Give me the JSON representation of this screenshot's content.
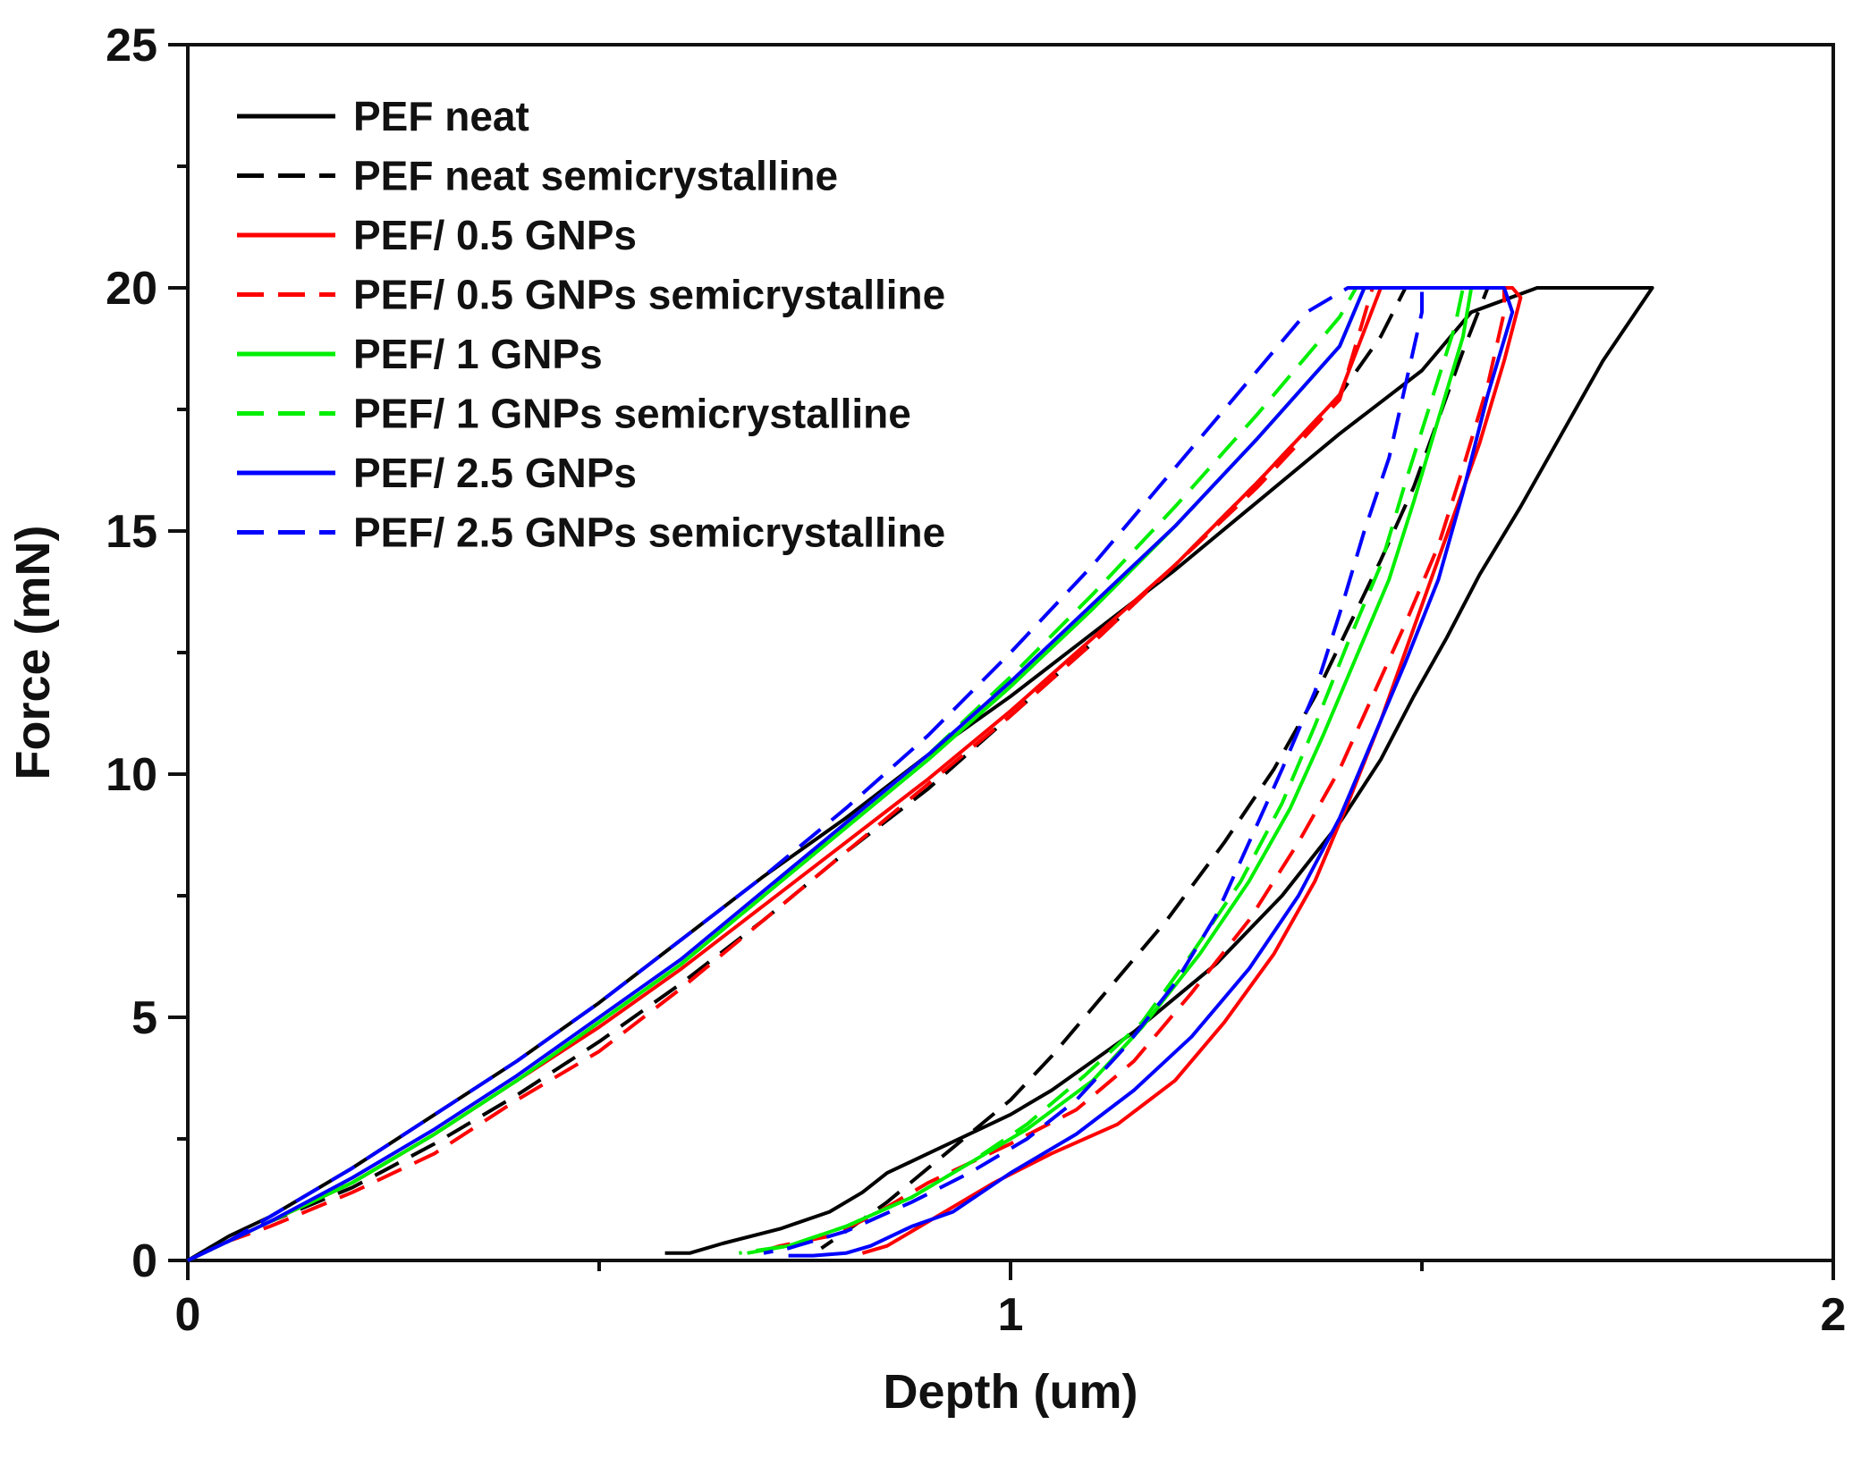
{
  "chart_data": {
    "type": "line",
    "title": "",
    "xlabel": "Depth (um)",
    "ylabel": "Force (mN)",
    "xlim": [
      0,
      2
    ],
    "ylim": [
      0,
      25
    ],
    "x_ticks": [
      0,
      1,
      2
    ],
    "x_minor_ticks": [
      0.5,
      1.5
    ],
    "y_ticks": [
      0,
      5,
      10,
      15,
      20,
      25
    ],
    "y_minor_ticks": [
      2.5,
      7.5,
      12.5,
      17.5,
      22.5
    ],
    "grid": false,
    "legend_position": "top-left",
    "series": [
      {
        "name": "PEF neat",
        "color": "#000000",
        "dash": false,
        "x": [
          0,
          0.05,
          0.1,
          0.2,
          0.3,
          0.4,
          0.5,
          0.6,
          0.7,
          0.8,
          0.9,
          1.0,
          1.1,
          1.2,
          1.3,
          1.4,
          1.5,
          1.56,
          1.64,
          1.78,
          1.72,
          1.67,
          1.62,
          1.57,
          1.53,
          1.49,
          1.45,
          1.4,
          1.33,
          1.25,
          1.15,
          1.1,
          1.05,
          1.0,
          0.95,
          0.9,
          0.85,
          0.82,
          0.78,
          0.72,
          0.65,
          0.61,
          0.58
        ],
        "y": [
          0,
          0.5,
          0.9,
          1.9,
          3.0,
          4.1,
          5.3,
          6.6,
          7.9,
          9.1,
          10.4,
          11.6,
          12.9,
          14.2,
          15.6,
          17.0,
          18.3,
          19.5,
          20.0,
          20.0,
          18.5,
          17.0,
          15.5,
          14.1,
          12.8,
          11.6,
          10.3,
          9.0,
          7.5,
          6.1,
          4.7,
          4.1,
          3.5,
          3.0,
          2.6,
          2.2,
          1.8,
          1.4,
          1.0,
          0.65,
          0.35,
          0.15,
          0.15
        ]
      },
      {
        "name": "PEF neat semicrystalline",
        "color": "#000000",
        "dash": true,
        "x": [
          0,
          0.05,
          0.1,
          0.2,
          0.3,
          0.4,
          0.5,
          0.6,
          0.7,
          0.8,
          0.9,
          1.0,
          1.1,
          1.2,
          1.3,
          1.4,
          1.45,
          1.48,
          1.55,
          1.58,
          1.55,
          1.52,
          1.49,
          1.45,
          1.41,
          1.37,
          1.32,
          1.26,
          1.19,
          1.11,
          1.05,
          1.0,
          0.95,
          0.9,
          0.85,
          0.8,
          0.77
        ],
        "y": [
          0,
          0.4,
          0.8,
          1.5,
          2.4,
          3.4,
          4.5,
          5.7,
          7.0,
          8.4,
          9.7,
          11.2,
          12.7,
          14.3,
          16.0,
          17.8,
          19.0,
          20.0,
          20.0,
          20.0,
          18.7,
          17.3,
          15.9,
          14.4,
          13.0,
          11.6,
          10.1,
          8.6,
          7.0,
          5.4,
          4.2,
          3.3,
          2.6,
          1.9,
          1.2,
          0.6,
          0.25
        ]
      },
      {
        "name": "PEF/ 0.5 GNPs",
        "color": "#ff0000",
        "dash": false,
        "x": [
          0,
          0.05,
          0.1,
          0.2,
          0.3,
          0.4,
          0.5,
          0.6,
          0.7,
          0.8,
          0.9,
          1.0,
          1.1,
          1.2,
          1.3,
          1.4,
          1.45,
          1.61,
          1.62,
          1.6,
          1.57,
          1.53,
          1.49,
          1.45,
          1.41,
          1.37,
          1.32,
          1.26,
          1.2,
          1.13,
          1.05,
          0.98,
          0.93,
          0.88,
          0.85,
          0.82
        ],
        "y": [
          0,
          0.4,
          0.8,
          1.6,
          2.6,
          3.7,
          4.8,
          6.0,
          7.3,
          8.6,
          9.9,
          11.3,
          12.8,
          14.3,
          16.0,
          17.8,
          20.0,
          20.0,
          19.8,
          18.5,
          16.8,
          14.9,
          13.0,
          11.1,
          9.4,
          7.8,
          6.3,
          4.9,
          3.7,
          2.8,
          2.2,
          1.6,
          1.1,
          0.6,
          0.3,
          0.15
        ]
      },
      {
        "name": "PEF/ 0.5 GNPs semicrystalline",
        "color": "#ff0000",
        "dash": true,
        "x": [
          0,
          0.05,
          0.1,
          0.2,
          0.3,
          0.4,
          0.5,
          0.6,
          0.7,
          0.8,
          0.9,
          1.0,
          1.1,
          1.2,
          1.3,
          1.4,
          1.44,
          1.6,
          1.6,
          1.58,
          1.55,
          1.52,
          1.48,
          1.44,
          1.4,
          1.35,
          1.29,
          1.22,
          1.15,
          1.08,
          1.0,
          0.9,
          0.83,
          0.78,
          0.72,
          0.7
        ],
        "y": [
          0,
          0.4,
          0.7,
          1.4,
          2.2,
          3.3,
          4.3,
          5.6,
          7.0,
          8.4,
          9.8,
          11.2,
          12.7,
          14.3,
          15.9,
          17.7,
          20.0,
          20.0,
          19.5,
          18.0,
          16.3,
          14.7,
          13.1,
          11.6,
          10.1,
          8.6,
          7.0,
          5.5,
          4.1,
          3.1,
          2.4,
          1.6,
          0.9,
          0.5,
          0.3,
          0.2
        ]
      },
      {
        "name": "PEF/ 1 GNPs",
        "color": "#00ee00",
        "dash": false,
        "x": [
          0,
          0.05,
          0.1,
          0.2,
          0.3,
          0.4,
          0.5,
          0.6,
          0.7,
          0.8,
          0.9,
          1.0,
          1.1,
          1.2,
          1.3,
          1.4,
          1.43,
          1.56,
          1.55,
          1.52,
          1.49,
          1.46,
          1.42,
          1.38,
          1.34,
          1.29,
          1.23,
          1.16,
          1.1,
          1.02,
          0.95,
          0.88,
          0.8,
          0.73,
          0.68
        ],
        "y": [
          0,
          0.4,
          0.8,
          1.6,
          2.6,
          3.7,
          4.9,
          6.1,
          7.5,
          8.9,
          10.3,
          11.8,
          13.4,
          15.1,
          16.9,
          18.8,
          20.0,
          20.0,
          19.0,
          17.3,
          15.6,
          14.0,
          12.4,
          10.8,
          9.3,
          7.8,
          6.3,
          4.8,
          3.7,
          2.7,
          2.0,
          1.3,
          0.7,
          0.3,
          0.15
        ]
      },
      {
        "name": "PEF/ 1 GNPs semicrystalline",
        "color": "#00ee00",
        "dash": true,
        "x": [
          0,
          0.05,
          0.1,
          0.2,
          0.3,
          0.4,
          0.5,
          0.6,
          0.7,
          0.8,
          0.9,
          1.0,
          1.1,
          1.2,
          1.3,
          1.4,
          1.42,
          1.55,
          1.54,
          1.51,
          1.48,
          1.45,
          1.41,
          1.37,
          1.33,
          1.28,
          1.22,
          1.16,
          1.09,
          1.02,
          0.95,
          0.88,
          0.8,
          0.73,
          0.67
        ],
        "y": [
          0,
          0.4,
          0.8,
          1.6,
          2.6,
          3.7,
          4.9,
          6.1,
          7.5,
          9.0,
          10.4,
          12.0,
          13.7,
          15.5,
          17.4,
          19.4,
          20.0,
          20.0,
          19.2,
          17.6,
          16.0,
          14.3,
          12.7,
          11.0,
          9.4,
          7.8,
          6.3,
          4.9,
          3.8,
          2.8,
          2.0,
          1.3,
          0.7,
          0.3,
          0.15
        ]
      },
      {
        "name": "PEF/ 2.5 GNPs",
        "color": "#0000ff",
        "dash": false,
        "x": [
          0,
          0.05,
          0.1,
          0.2,
          0.3,
          0.4,
          0.5,
          0.6,
          0.7,
          0.8,
          0.9,
          1.0,
          1.1,
          1.2,
          1.3,
          1.4,
          1.43,
          1.6,
          1.61,
          1.58,
          1.55,
          1.52,
          1.48,
          1.44,
          1.4,
          1.35,
          1.29,
          1.22,
          1.15,
          1.08,
          1.0,
          0.93,
          0.88,
          0.83,
          0.8,
          0.76,
          0.73
        ],
        "y": [
          0,
          0.4,
          0.8,
          1.7,
          2.7,
          3.8,
          5.0,
          6.2,
          7.6,
          9.0,
          10.4,
          11.9,
          13.5,
          15.1,
          16.9,
          18.8,
          20.0,
          20.0,
          19.5,
          17.8,
          15.8,
          14.0,
          12.3,
          10.7,
          9.1,
          7.5,
          6.0,
          4.6,
          3.5,
          2.6,
          1.8,
          1.0,
          0.7,
          0.3,
          0.15,
          0.1,
          0.1
        ]
      },
      {
        "name": "PEF/ 2.5 GNPs semicrystalline",
        "color": "#0000ff",
        "dash": true,
        "x": [
          0,
          0.05,
          0.1,
          0.2,
          0.3,
          0.4,
          0.5,
          0.6,
          0.7,
          0.8,
          0.9,
          1.0,
          1.1,
          1.2,
          1.3,
          1.36,
          1.41,
          1.5,
          1.5,
          1.48,
          1.46,
          1.43,
          1.4,
          1.37,
          1.33,
          1.29,
          1.25,
          1.2,
          1.14,
          1.08,
          1.02,
          0.95,
          0.88,
          0.8,
          0.73,
          0.7
        ],
        "y": [
          0,
          0.4,
          0.9,
          1.9,
          3.0,
          4.1,
          5.3,
          6.6,
          7.9,
          9.3,
          10.8,
          12.5,
          14.3,
          16.3,
          18.3,
          19.5,
          20.0,
          20.0,
          19.5,
          18.0,
          16.5,
          15.0,
          13.3,
          11.7,
          10.1,
          8.6,
          7.1,
          5.7,
          4.4,
          3.3,
          2.5,
          1.8,
          1.2,
          0.6,
          0.25,
          0.15
        ]
      }
    ]
  }
}
